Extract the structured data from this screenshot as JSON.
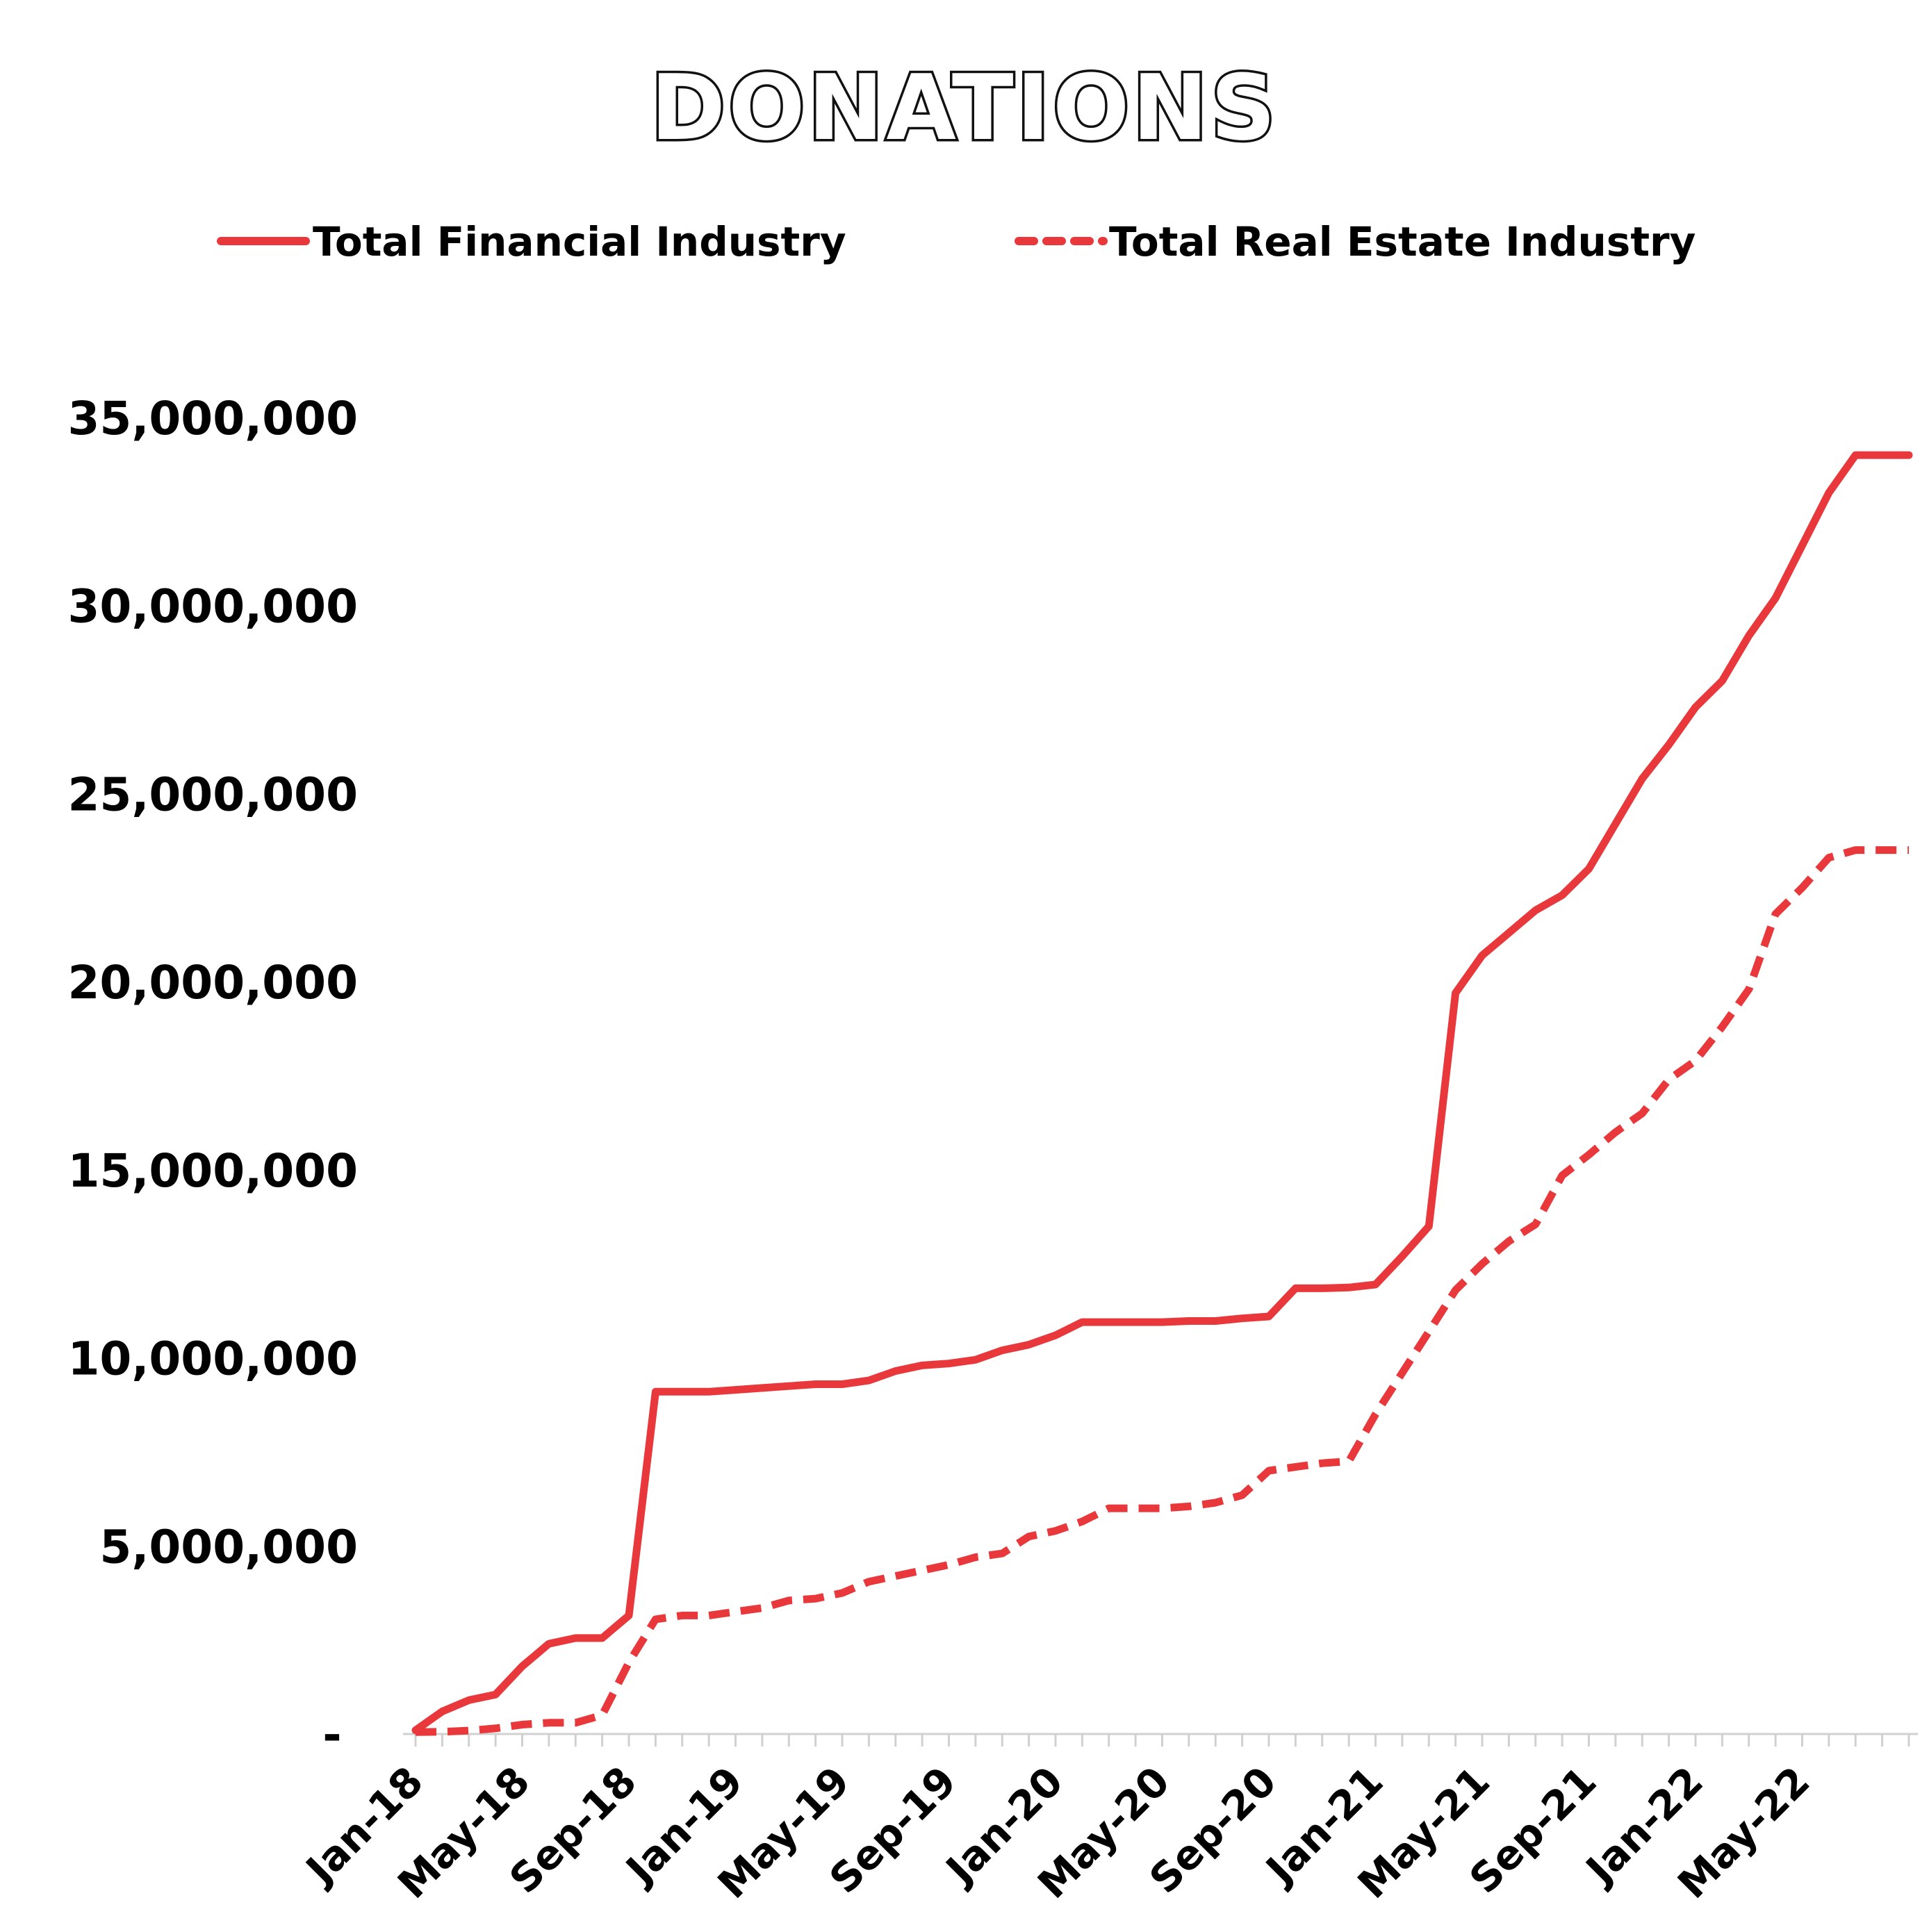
{
  "chart_data": {
    "type": "line",
    "title": "DONATIONS",
    "xlabel": "",
    "ylabel": "",
    "ylim": [
      0,
      35000000
    ],
    "grid": false,
    "legend_position": "top",
    "yticks": [
      {
        "value": 0,
        "label": "-"
      },
      {
        "value": 5000000,
        "label": "5,000,000"
      },
      {
        "value": 10000000,
        "label": "10,000,000"
      },
      {
        "value": 15000000,
        "label": "15,000,000"
      },
      {
        "value": 20000000,
        "label": "20,000,000"
      },
      {
        "value": 25000000,
        "label": "25,000,000"
      },
      {
        "value": 30000000,
        "label": "30,000,000"
      },
      {
        "value": 35000000,
        "label": "35,000,000"
      }
    ],
    "x": [
      "Jan-18",
      "Feb-18",
      "Mar-18",
      "Apr-18",
      "May-18",
      "Jun-18",
      "Jul-18",
      "Aug-18",
      "Sep-18",
      "Oct-18",
      "Nov-18",
      "Dec-18",
      "Jan-19",
      "Feb-19",
      "Mar-19",
      "Apr-19",
      "May-19",
      "Jun-19",
      "Jul-19",
      "Aug-19",
      "Sep-19",
      "Oct-19",
      "Nov-19",
      "Dec-19",
      "Jan-20",
      "Feb-20",
      "Mar-20",
      "Apr-20",
      "May-20",
      "Jun-20",
      "Jul-20",
      "Aug-20",
      "Sep-20",
      "Oct-20",
      "Nov-20",
      "Dec-20",
      "Jan-21",
      "Feb-21",
      "Mar-21",
      "Apr-21",
      "May-21",
      "Jun-21",
      "Jul-21",
      "Aug-21",
      "Sep-21",
      "Oct-21",
      "Nov-21",
      "Dec-21",
      "Jan-22",
      "Feb-22",
      "Mar-22",
      "Apr-22",
      "May-22",
      "Jun-22",
      "Jul-22",
      "Aug-22",
      "Sep-22"
    ],
    "x_tick_labels": [
      "Jan-18",
      "May-18",
      "Sep-18",
      "Jan-19",
      "May-19",
      "Sep-19",
      "Jan-20",
      "May-20",
      "Sep-20",
      "Jan-21",
      "May-21",
      "Sep-21",
      "Jan-22",
      "May-22"
    ],
    "series": [
      {
        "name": "Total Financial Industry",
        "style": "solid",
        "color": "#e8383b",
        "values": [
          100000,
          600000,
          900000,
          1050000,
          1800000,
          2400000,
          2550000,
          2550000,
          3150000,
          9100000,
          9100000,
          9100000,
          9150000,
          9200000,
          9250000,
          9300000,
          9300000,
          9400000,
          9650000,
          9800000,
          9850000,
          9950000,
          10200000,
          10350000,
          10600000,
          10950000,
          10950000,
          10950000,
          10950000,
          10980000,
          10980000,
          11050000,
          11100000,
          11850000,
          11850000,
          11870000,
          11950000,
          12700000,
          13500000,
          19700000,
          20700000,
          21300000,
          21900000,
          22300000,
          23000000,
          24200000,
          25400000,
          26300000,
          27300000,
          28000000,
          29200000,
          30200000,
          31600000,
          33000000,
          34000000,
          34000000,
          34000000
        ],
        "note": ""
      },
      {
        "name": "Total Real Estate Industry",
        "style": "dashed",
        "color": "#e8383b",
        "values": [
          50000,
          60000,
          90000,
          150000,
          250000,
          300000,
          300000,
          500000,
          1900000,
          3050000,
          3150000,
          3150000,
          3250000,
          3350000,
          3550000,
          3600000,
          3750000,
          4050000,
          4200000,
          4350000,
          4500000,
          4700000,
          4800000,
          5250000,
          5400000,
          5650000,
          6000000,
          6000000,
          6000000,
          6050000,
          6150000,
          6350000,
          7000000,
          7100000,
          7200000,
          7250000,
          8500000,
          9600000,
          10700000,
          11800000,
          12500000,
          13100000,
          13550000,
          14850000,
          15400000,
          16000000,
          16500000,
          17400000,
          17900000,
          18800000,
          19800000,
          21800000,
          22500000,
          23300000,
          23500000,
          23500000,
          23500000
        ]
      }
    ]
  },
  "colors": {
    "line": "#e8383b",
    "axis": "#d0d0d0",
    "text": "#000000"
  }
}
